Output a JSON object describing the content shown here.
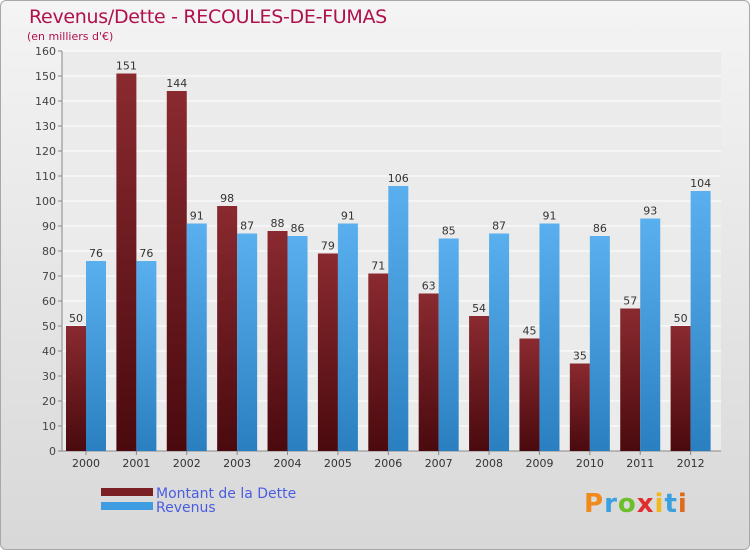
{
  "title": "Revenus/Dette - RECOULES-DE-FUMAS",
  "subtitle": "(en milliers d'€)",
  "logo": [
    "P",
    "r",
    "o",
    "x",
    "i",
    "t",
    "i"
  ],
  "colors": {
    "debt": "#7a1f24",
    "revenue": "#3d9de0",
    "title": "#b0104e",
    "legend_text": "#4a5de0",
    "logo": [
      "#f08a1c",
      "#3aa0e0",
      "#6cbf2a",
      "#e02e2e",
      "#f0b81c",
      "#3aa0e0",
      "#e06a1c"
    ]
  },
  "chart_data": {
    "type": "bar",
    "title": "Revenus/Dette - RECOULES-DE-FUMAS",
    "subtitle": "(en milliers d'€)",
    "categories": [
      "2000",
      "2001",
      "2002",
      "2003",
      "2004",
      "2005",
      "2006",
      "2007",
      "2008",
      "2009",
      "2010",
      "2011",
      "2012"
    ],
    "series": [
      {
        "name": "Montant de la Dette",
        "values": [
          50,
          151,
          144,
          98,
          88,
          79,
          71,
          63,
          54,
          45,
          35,
          57,
          50
        ]
      },
      {
        "name": "Revenus",
        "values": [
          76,
          76,
          91,
          87,
          86,
          91,
          106,
          85,
          87,
          91,
          86,
          93,
          104
        ]
      }
    ],
    "ylim": [
      0,
      160
    ],
    "yticks": [
      0,
      10,
      20,
      30,
      40,
      50,
      60,
      70,
      80,
      90,
      100,
      110,
      120,
      130,
      140,
      150,
      160
    ],
    "grid": true,
    "legend_position": "bottom-left"
  }
}
